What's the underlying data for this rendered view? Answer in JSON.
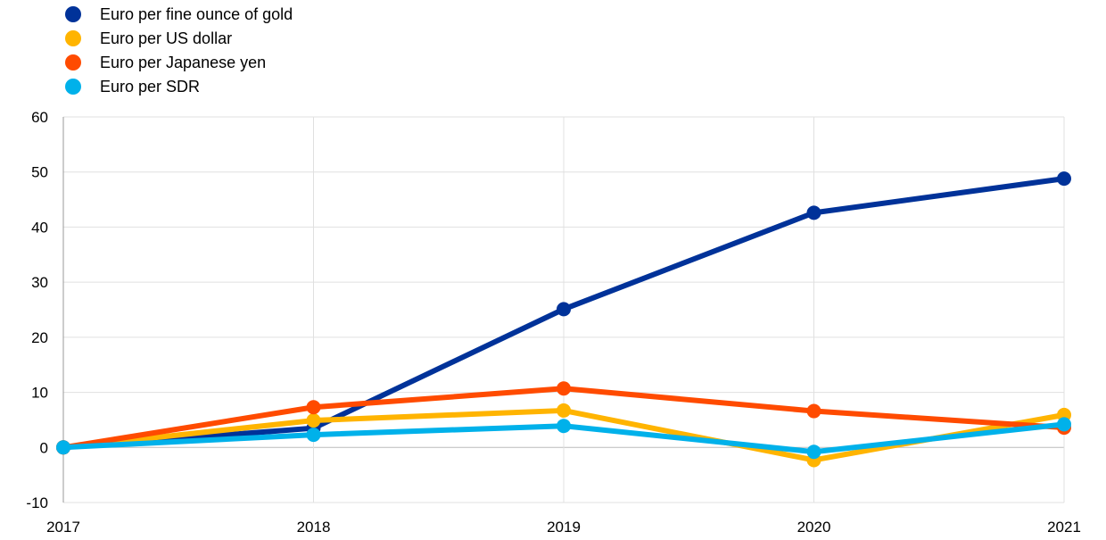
{
  "chart_data": {
    "type": "line",
    "title": "",
    "xlabel": "",
    "ylabel": "",
    "x": [
      "2017",
      "2018",
      "2019",
      "2020",
      "2021"
    ],
    "ylim": [
      -10,
      60
    ],
    "yticks": [
      -10,
      0,
      10,
      20,
      30,
      40,
      50,
      60
    ],
    "grid": true,
    "legend_position": "top-left",
    "series": [
      {
        "name": "Euro per fine ounce of gold",
        "color": "#003299",
        "values": [
          0,
          3.5,
          25.1,
          42.6,
          48.8
        ]
      },
      {
        "name": "Euro per US dollar",
        "color": "#FFB400",
        "values": [
          0,
          4.9,
          6.7,
          -2.3,
          5.9
        ]
      },
      {
        "name": "Euro per Japanese yen",
        "color": "#FF4B00",
        "values": [
          0,
          7.3,
          10.7,
          6.6,
          3.6
        ]
      },
      {
        "name": "Euro per SDR",
        "color": "#00B1EA",
        "values": [
          0,
          2.3,
          3.9,
          -0.8,
          4.2
        ]
      }
    ]
  }
}
